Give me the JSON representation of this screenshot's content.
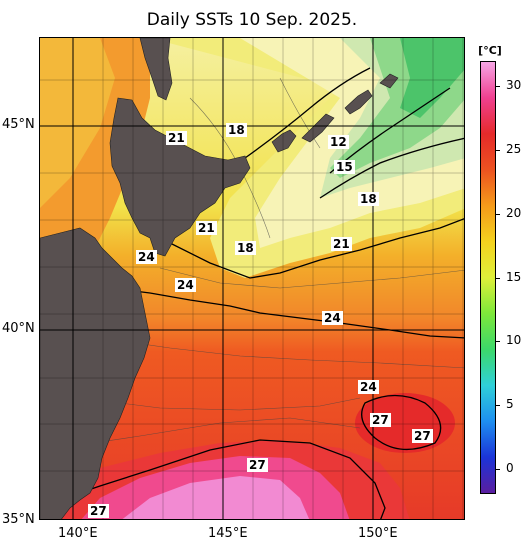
{
  "title": "Daily SSTs 10 Sep. 2025.",
  "longitude_labels": [
    "140°E",
    "145°E",
    "150°E"
  ],
  "latitude_labels": [
    "45°N",
    "40°N",
    "35°N"
  ],
  "colorbar": {
    "unit": "[°C]",
    "ticks": [
      "30",
      "25",
      "20",
      "15",
      "10",
      "5",
      "0"
    ],
    "range": [
      -2,
      32
    ],
    "colors": [
      "#5a1ea0",
      "#1b34d8",
      "#1e8ff0",
      "#2fd0d8",
      "#3cd86a",
      "#7ee83a",
      "#dff03a",
      "#f4d21e",
      "#f59a1a",
      "#ec5220",
      "#e52a2a",
      "#f04090",
      "#f6a6e6"
    ]
  },
  "contour_labels": [
    {
      "text": "21",
      "lon": 143.4,
      "lat": 44.7
    },
    {
      "text": "18",
      "lon": 145.4,
      "lat": 44.9
    },
    {
      "text": "12",
      "lon": 148.8,
      "lat": 44.6
    },
    {
      "text": "15",
      "lon": 149.0,
      "lat": 44.0
    },
    {
      "text": "18",
      "lon": 149.8,
      "lat": 43.2
    },
    {
      "text": "21",
      "lon": 144.4,
      "lat": 42.5
    },
    {
      "text": "18",
      "lon": 145.7,
      "lat": 42.0
    },
    {
      "text": "21",
      "lon": 148.9,
      "lat": 42.1
    },
    {
      "text": "24",
      "lon": 142.4,
      "lat": 41.8
    },
    {
      "text": "24",
      "lon": 143.7,
      "lat": 41.1
    },
    {
      "text": "24",
      "lon": 148.6,
      "lat": 40.3
    },
    {
      "text": "24",
      "lon": 149.8,
      "lat": 38.6
    },
    {
      "text": "27",
      "lon": 150.2,
      "lat": 37.8
    },
    {
      "text": "27",
      "lon": 151.6,
      "lat": 37.4
    },
    {
      "text": "27",
      "lon": 146.1,
      "lat": 36.7
    },
    {
      "text": "27",
      "lon": 140.8,
      "lat": 35.1
    }
  ]
}
